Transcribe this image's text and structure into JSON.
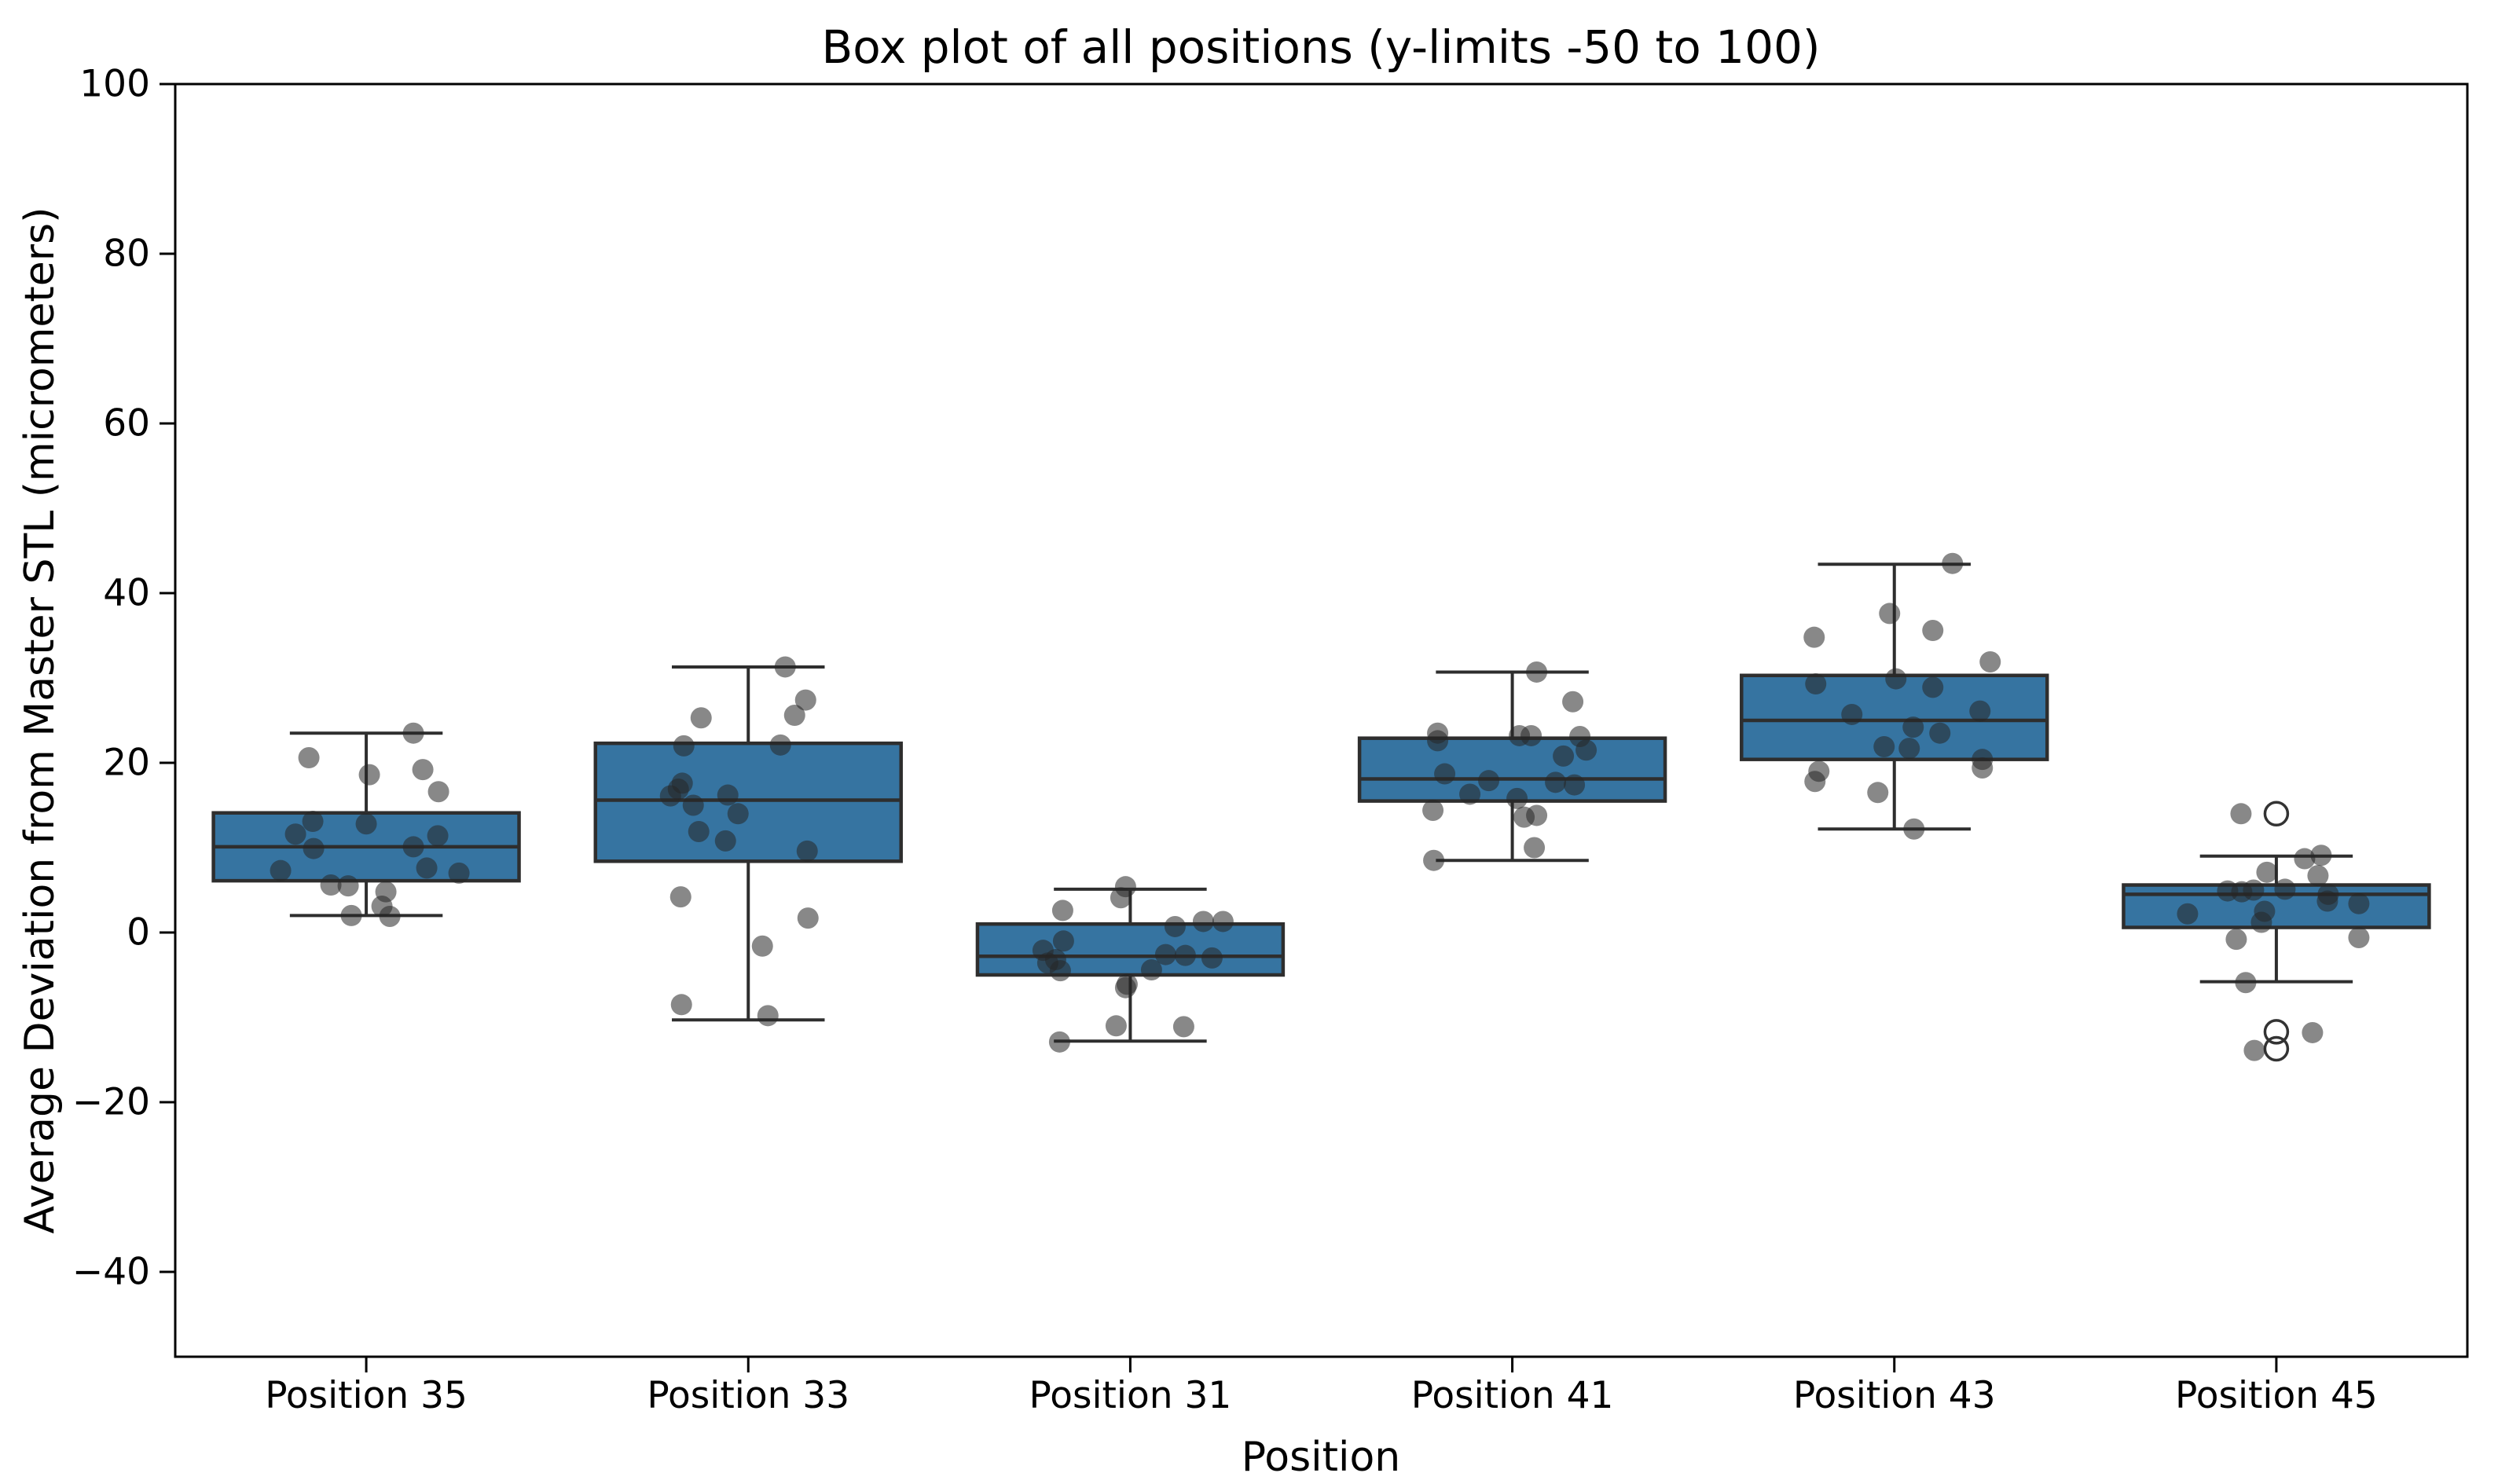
{
  "chart_data": {
    "type": "box",
    "title": "Box plot of all positions (y-limits -50 to 100)",
    "xlabel": "Position",
    "ylabel": "Average Deviation from Master STL (micrometers)",
    "ylim": [
      -50,
      100
    ],
    "yticks": [
      -40,
      -20,
      0,
      20,
      40,
      60,
      80,
      100
    ],
    "grid": false,
    "legend": null,
    "colors": {
      "box_fill": "#3674a1",
      "box_edge": "#2e2e2e",
      "median": "#2e2e2e",
      "whisker": "#2e2e2e",
      "point_fill": "rgba(38,38,38,0.55)",
      "flier_edge": "#333333",
      "spine": "#000000",
      "text": "#000000"
    },
    "categories": [
      "Position 35",
      "Position 33",
      "Position 31",
      "Position 41",
      "Position 43",
      "Position 45"
    ],
    "series": [
      {
        "label": "Position 35",
        "whisker_low": 2.0,
        "q1": 6.1,
        "median": 10.1,
        "q3": 14.1,
        "whisker_high": 23.5,
        "outliers": [],
        "points": [
          [
            60,
            23.5
          ],
          [
            -73,
            20.6
          ],
          [
            4,
            18.6
          ],
          [
            72,
            19.2
          ],
          [
            92,
            16.6
          ],
          [
            -68,
            13.1
          ],
          [
            0,
            12.8
          ],
          [
            -90,
            11.6
          ],
          [
            91,
            11.4
          ],
          [
            -67,
            9.9
          ],
          [
            60,
            10.1
          ],
          [
            77,
            7.6
          ],
          [
            -109,
            7.3
          ],
          [
            118,
            7.0
          ],
          [
            -45,
            5.6
          ],
          [
            -23,
            5.5
          ],
          [
            25,
            4.8
          ],
          [
            20,
            3.1
          ],
          [
            -19,
            2.0
          ],
          [
            30,
            1.9
          ]
        ]
      },
      {
        "label": "Position 33",
        "whisker_low": -10.3,
        "q1": 8.4,
        "median": 15.6,
        "q3": 22.3,
        "whisker_high": 31.3,
        "outliers": [],
        "points": [
          [
            47,
            31.3
          ],
          [
            73,
            27.4
          ],
          [
            59,
            25.6
          ],
          [
            -60,
            25.3
          ],
          [
            -82,
            22.0
          ],
          [
            41,
            22.1
          ],
          [
            -84,
            17.6
          ],
          [
            -89,
            16.9
          ],
          [
            -99,
            16.1
          ],
          [
            -26,
            16.2
          ],
          [
            -70,
            15.0
          ],
          [
            -13,
            14.0
          ],
          [
            -63,
            11.9
          ],
          [
            -29,
            10.8
          ],
          [
            75,
            9.6
          ],
          [
            -86,
            4.2
          ],
          [
            76,
            1.7
          ],
          [
            18,
            -1.6
          ],
          [
            -85,
            -8.5
          ],
          [
            25,
            -9.8
          ]
        ]
      },
      {
        "label": "Position 31",
        "whisker_low": -12.8,
        "q1": -5.0,
        "median": -2.8,
        "q3": 1.0,
        "whisker_high": 5.1,
        "outliers": [],
        "points": [
          [
            -6,
            5.4
          ],
          [
            -12,
            4.1
          ],
          [
            -86,
            2.6
          ],
          [
            57,
            0.7
          ],
          [
            93,
            1.3
          ],
          [
            118,
            1.3
          ],
          [
            -85,
            -1.0
          ],
          [
            -111,
            -2.1
          ],
          [
            -95,
            -3.2
          ],
          [
            -105,
            -3.6
          ],
          [
            -89,
            -4.5
          ],
          [
            45,
            -2.6
          ],
          [
            70,
            -2.7
          ],
          [
            104,
            -3.0
          ],
          [
            27,
            -4.4
          ],
          [
            -4,
            -6.1
          ],
          [
            -6,
            -6.5
          ],
          [
            -18,
            -11.0
          ],
          [
            68,
            -11.1
          ],
          [
            -90,
            -12.9
          ]
        ]
      },
      {
        "label": "Position 41",
        "whisker_low": 8.5,
        "q1": 15.5,
        "median": 18.1,
        "q3": 22.9,
        "whisker_high": 30.7,
        "outliers": [],
        "points": [
          [
            31,
            30.7
          ],
          [
            77,
            27.2
          ],
          [
            -95,
            23.5
          ],
          [
            -95,
            22.6
          ],
          [
            9,
            23.2
          ],
          [
            24,
            23.2
          ],
          [
            86,
            23.1
          ],
          [
            65,
            20.8
          ],
          [
            94,
            21.5
          ],
          [
            -86,
            18.7
          ],
          [
            -30,
            17.9
          ],
          [
            55,
            17.7
          ],
          [
            79,
            17.4
          ],
          [
            -54,
            16.3
          ],
          [
            6,
            15.8
          ],
          [
            -101,
            14.4
          ],
          [
            15,
            13.6
          ],
          [
            31,
            13.8
          ],
          [
            28,
            10.0
          ],
          [
            -100,
            8.5
          ]
        ]
      },
      {
        "label": "Position 43",
        "whisker_low": 12.2,
        "q1": 20.4,
        "median": 25.0,
        "q3": 30.3,
        "whisker_high": 43.4,
        "outliers": [],
        "points": [
          [
            74,
            43.5
          ],
          [
            -6,
            37.6
          ],
          [
            49,
            35.6
          ],
          [
            -102,
            34.8
          ],
          [
            122,
            31.9
          ],
          [
            -100,
            29.3
          ],
          [
            2,
            29.9
          ],
          [
            49,
            28.9
          ],
          [
            109,
            26.1
          ],
          [
            -54,
            25.7
          ],
          [
            24,
            24.2
          ],
          [
            58,
            23.5
          ],
          [
            -13,
            21.9
          ],
          [
            19,
            21.7
          ],
          [
            112,
            20.4
          ],
          [
            112,
            19.4
          ],
          [
            -96,
            19.0
          ],
          [
            -101,
            17.8
          ],
          [
            -21,
            16.5
          ],
          [
            25,
            12.2
          ]
        ]
      },
      {
        "label": "Position 45",
        "whisker_low": -5.8,
        "q1": 0.6,
        "median": 4.5,
        "q3": 5.6,
        "whisker_high": 9.0,
        "outliers": [
          14.0,
          -11.7,
          -13.7
        ],
        "points": [
          [
            -45,
            14.0
          ],
          [
            36,
            8.7
          ],
          [
            57,
            9.1
          ],
          [
            -12,
            7.1
          ],
          [
            53,
            6.7
          ],
          [
            -62,
            4.9
          ],
          [
            -44,
            4.8
          ],
          [
            -29,
            5.0
          ],
          [
            11,
            5.1
          ],
          [
            66,
            4.5
          ],
          [
            65,
            3.7
          ],
          [
            105,
            3.4
          ],
          [
            -113,
            2.2
          ],
          [
            -15,
            2.5
          ],
          [
            -19,
            1.2
          ],
          [
            -51,
            -0.8
          ],
          [
            105,
            -0.6
          ],
          [
            -39,
            -5.9
          ],
          [
            46,
            -11.8
          ],
          [
            -28,
            -13.9
          ]
        ]
      }
    ]
  }
}
